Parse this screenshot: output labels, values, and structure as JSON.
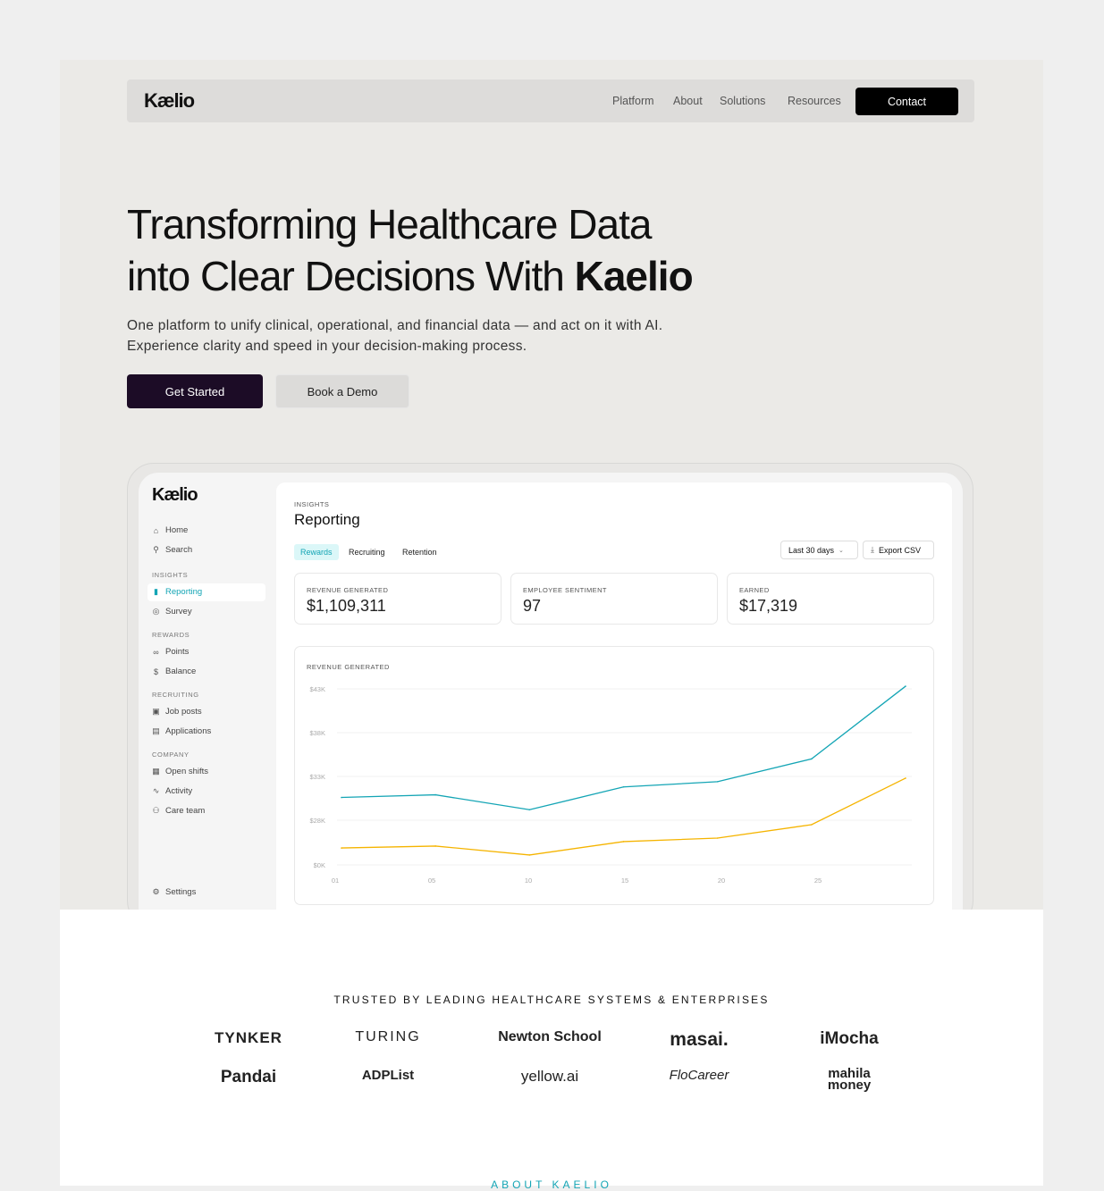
{
  "nav": {
    "logo": "Kælio",
    "links": [
      "Platform",
      "About",
      "Solutions",
      "Resources"
    ],
    "contact": "Contact"
  },
  "hero": {
    "title_line1": "Transforming Healthcare Data",
    "title_line2": "into Clear Decisions With ",
    "title_brand": "Kaelio",
    "subtitle": "One platform to unify clinical, operational, and financial data — and act on it with AI. Experience clarity and speed in your decision-making process.",
    "cta_primary": "Get Started",
    "cta_secondary": "Book a Demo"
  },
  "dashboard": {
    "logo": "Kælio",
    "sidebar": {
      "top": [
        {
          "label": "Home",
          "icon": "home-icon"
        },
        {
          "label": "Search",
          "icon": "search-icon"
        }
      ],
      "sections": [
        {
          "title": "INSIGHTS",
          "items": [
            {
              "label": "Reporting",
              "icon": "bar-chart-icon",
              "active": true
            },
            {
              "label": "Survey",
              "icon": "target-icon"
            }
          ]
        },
        {
          "title": "REWARDS",
          "items": [
            {
              "label": "Points",
              "icon": "coins-icon"
            },
            {
              "label": "Balance",
              "icon": "dollar-icon"
            }
          ]
        },
        {
          "title": "RECRUITING",
          "items": [
            {
              "label": "Job posts",
              "icon": "briefcase-icon"
            },
            {
              "label": "Applications",
              "icon": "document-icon"
            }
          ]
        },
        {
          "title": "COMPANY",
          "items": [
            {
              "label": "Open shifts",
              "icon": "calendar-clock-icon"
            },
            {
              "label": "Activity",
              "icon": "activity-icon"
            },
            {
              "label": "Care team",
              "icon": "users-icon"
            }
          ]
        }
      ],
      "settings": "Settings"
    },
    "eyebrow": "INSIGHTS",
    "title": "Reporting",
    "tabs": [
      {
        "label": "Rewards",
        "active": true
      },
      {
        "label": "Recruiting"
      },
      {
        "label": "Retention"
      }
    ],
    "range": "Last 30 days",
    "export": "Export CSV",
    "stats": [
      {
        "label": "REVENUE GENERATED",
        "value": "$1,109,311"
      },
      {
        "label": "EMPLOYEE SENTIMENT",
        "value": "97"
      },
      {
        "label": "EARNED",
        "value": "$17,319"
      }
    ],
    "accent": "#14a5b5"
  },
  "chart_data": {
    "type": "line",
    "title": "REVENUE GENERATED",
    "y_ticks": [
      "$43K",
      "$38K",
      "$33K",
      "$28K",
      "$0K"
    ],
    "y_tick_values": [
      43,
      38,
      33,
      28,
      0
    ],
    "x_ticks": [
      "01",
      "05",
      "10",
      "15",
      "20",
      "25"
    ],
    "x": [
      1,
      5,
      10,
      15,
      20,
      25,
      30
    ],
    "series": [
      {
        "color": "#14a5b5",
        "values": [
          30.6,
          30.9,
          29.2,
          31.8,
          32.4,
          35.0,
          43.3
        ]
      },
      {
        "color": "#f5b400",
        "values": [
          10.6,
          11.8,
          6.2,
          14.6,
          16.8,
          25.2,
          32.8
        ]
      }
    ],
    "unit": "K USD",
    "grid": true
  },
  "trusted": {
    "heading": "TRUSTED BY LEADING HEALTHCARE SYSTEMS & ENTERPRISES",
    "logos": [
      "TYNKER",
      "TURING",
      "Newton School",
      "masai.",
      "iMocha",
      "Pandai",
      "ADPList",
      "yellow.ai",
      "FloCareer",
      "mahila money"
    ]
  },
  "about": "ABOUT KAELIO"
}
